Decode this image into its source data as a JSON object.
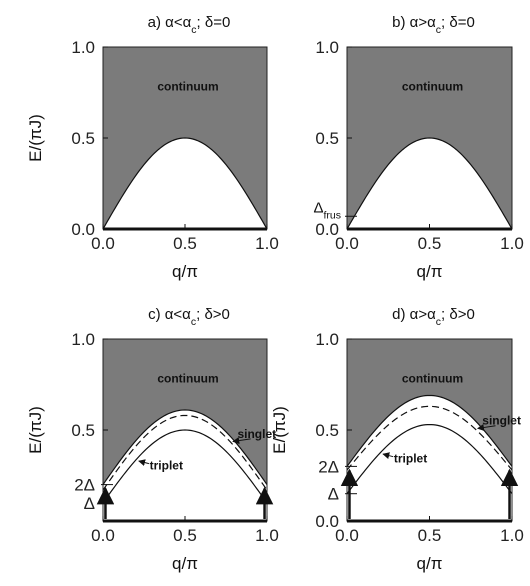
{
  "chart_data": [
    {
      "panel": "a",
      "type": "area",
      "title": "a) α<α_c; δ=0",
      "xlabel": "q/π",
      "ylabel": "E/(πJ)",
      "xlim": [
        0,
        1
      ],
      "ylim": [
        0,
        1
      ],
      "xticks": [
        "0.0",
        "0.5",
        "1.0"
      ],
      "yticks": [
        "0.0",
        "0.5",
        "1.0"
      ],
      "region_label": "continuum",
      "lower_edge": {
        "x": [
          0.0,
          0.25,
          0.5,
          0.75,
          1.0
        ],
        "y": [
          0.0,
          0.35,
          0.5,
          0.35,
          0.0
        ]
      }
    },
    {
      "panel": "b",
      "type": "area",
      "title": "b) α>α_c; δ=0",
      "xlabel": "q/π",
      "ylabel": "",
      "xlim": [
        0,
        1
      ],
      "ylim": [
        0,
        1
      ],
      "xticks": [
        "0.0",
        "0.5",
        "1.0"
      ],
      "yticks": [
        "0.0",
        "0.5",
        "1.0"
      ],
      "region_label": "continuum",
      "gap_label": "Δ_frus",
      "gap_value": 0.07,
      "lower_edge": {
        "x": [
          0.0,
          0.25,
          0.5,
          0.75,
          1.0
        ],
        "y": [
          0.0,
          0.35,
          0.5,
          0.35,
          0.0
        ]
      }
    },
    {
      "panel": "c",
      "type": "line",
      "title": "c) α<α_c; δ>0",
      "xlabel": "q/π",
      "ylabel": "E/(πJ)",
      "xlim": [
        0,
        1
      ],
      "ylim": [
        0,
        1
      ],
      "xticks": [
        "0.0",
        "0.5",
        "1.0"
      ],
      "yticks": [
        "0.5",
        "1.0"
      ],
      "region_label": "continuum",
      "series": [
        {
          "name": "triplet",
          "x": [
            0.0,
            0.25,
            0.5,
            0.75,
            1.0
          ],
          "y": [
            0.1,
            0.39,
            0.5,
            0.39,
            0.1
          ]
        },
        {
          "name": "singlet",
          "x": [
            0.0,
            0.25,
            0.5,
            0.75,
            1.0
          ],
          "y": [
            0.17,
            0.47,
            0.58,
            0.47,
            0.17
          ]
        },
        {
          "name": "",
          "x": [
            0.0,
            0.25,
            0.5,
            0.75,
            1.0
          ],
          "y": [
            0.2,
            0.5,
            0.61,
            0.5,
            0.2
          ]
        }
      ],
      "marks": [
        "2Δ",
        "Δ"
      ],
      "mark_values": [
        0.2,
        0.1
      ]
    },
    {
      "panel": "d",
      "type": "line",
      "title": "d) α>α_c; δ>0",
      "xlabel": "q/π",
      "ylabel": "E/(πJ)",
      "xlim": [
        0,
        1
      ],
      "ylim": [
        0,
        1
      ],
      "xticks": [
        "0.0",
        "0.5",
        "1.0"
      ],
      "yticks": [
        "0.0",
        "0.5",
        "1.0"
      ],
      "region_label": "continuum",
      "series": [
        {
          "name": "triplet",
          "x": [
            0.0,
            0.25,
            0.5,
            0.75,
            1.0
          ],
          "y": [
            0.15,
            0.43,
            0.53,
            0.43,
            0.15
          ]
        },
        {
          "name": "singlet",
          "x": [
            0.0,
            0.25,
            0.5,
            0.75,
            1.0
          ],
          "y": [
            0.28,
            0.54,
            0.63,
            0.54,
            0.28
          ]
        },
        {
          "name": "",
          "x": [
            0.0,
            0.25,
            0.5,
            0.75,
            1.0
          ],
          "y": [
            0.3,
            0.59,
            0.69,
            0.59,
            0.3
          ]
        }
      ],
      "marks": [
        "2Δ",
        "Δ"
      ],
      "mark_values": [
        0.3,
        0.15
      ]
    }
  ]
}
